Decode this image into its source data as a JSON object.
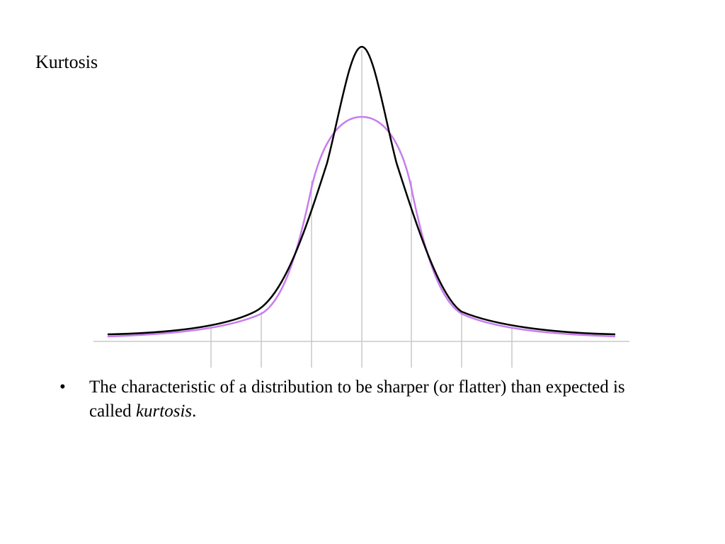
{
  "slide": {
    "title": "Kurtosis"
  },
  "diagram": {
    "curves": [
      {
        "id": "sharper",
        "color": "#000000"
      },
      {
        "id": "flatter",
        "color": "#c77dee"
      }
    ],
    "axis_color": "#c8c8c8"
  },
  "bullet": {
    "marker": "•",
    "text_main": "The characteristic of a distribution to be sharper (or flatter) than expected is called ",
    "text_emphasis": "kurtosis",
    "text_end": "."
  }
}
